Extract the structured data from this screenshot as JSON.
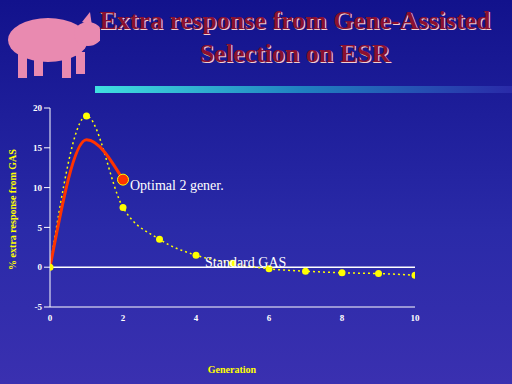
{
  "chart_data": {
    "type": "line",
    "title": "Extra response from Gene-Assisted Selection  on ESR",
    "x_label": "Generation",
    "y_label": "% extra response from GAS",
    "x": [
      0,
      1,
      2,
      3,
      4,
      5,
      6,
      7,
      8,
      9,
      10
    ],
    "xlim": [
      0,
      10
    ],
    "xticks": [
      0,
      2,
      4,
      6,
      8,
      10
    ],
    "ylim": [
      -5,
      20
    ],
    "yticks": [
      -5,
      0,
      5,
      10,
      15,
      20
    ],
    "grid": false,
    "series": [
      {
        "name": "Standard GAS",
        "color": "#ffff00",
        "line_style": "dotted",
        "marker": "circle",
        "values": [
          0,
          19,
          7.5,
          3.5,
          1.5,
          0.5,
          -0.2,
          -0.5,
          -0.7,
          -0.8,
          -1
        ]
      },
      {
        "name": "Optimal 2 gener.",
        "color": "#ff3300",
        "line_style": "solid",
        "marker": "end",
        "values": [
          0,
          16,
          11,
          null,
          null,
          null,
          null,
          null,
          null,
          null,
          null
        ]
      }
    ],
    "annotations": [
      "Optimal 2 gener.",
      "Standard GAS"
    ]
  }
}
